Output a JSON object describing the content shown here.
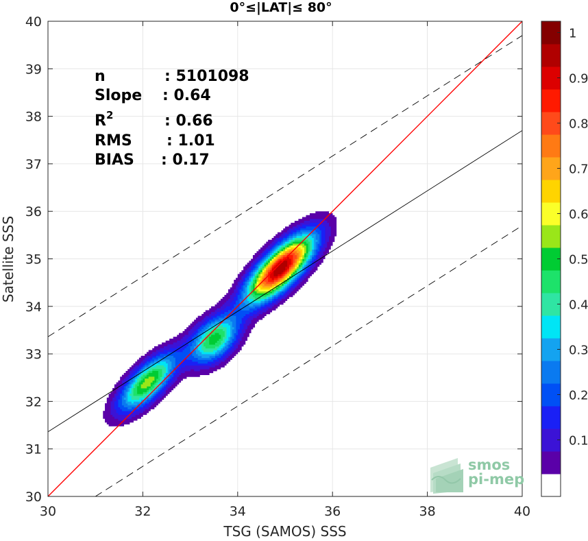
{
  "chart_data": {
    "type": "heatmap",
    "title": "0°≤|LAT|≤ 80°",
    "xlabel": "TSG (SAMOS) SSS",
    "ylabel": "Satellite SSS",
    "xlim": [
      30,
      40
    ],
    "ylim": [
      30,
      40
    ],
    "x_ticks": [
      "30",
      "32",
      "34",
      "36",
      "38",
      "40"
    ],
    "y_ticks": [
      "30",
      "31",
      "32",
      "33",
      "34",
      "35",
      "36",
      "37",
      "38",
      "39",
      "40"
    ],
    "grid": true,
    "stats": [
      {
        "label": "n",
        "value": ": 5101098"
      },
      {
        "label": "Slope",
        "value": ": 0.64"
      },
      {
        "label": "R",
        "sup": "2",
        "value": ": 0.66"
      },
      {
        "label": "RMS",
        "value": ": 1.01"
      },
      {
        "label": "BIAS",
        "value": ": 0.17"
      }
    ],
    "reference_lines": [
      {
        "kind": "identity",
        "color": "#ff0000",
        "style": "solid",
        "x": [
          30,
          40
        ],
        "y": [
          30,
          40
        ]
      },
      {
        "kind": "regression",
        "color": "#000000",
        "style": "solid",
        "x": [
          30,
          40
        ],
        "y": [
          31.36,
          37.7
        ]
      },
      {
        "kind": "upper-bound",
        "color": "#000000",
        "style": "dashed",
        "x": [
          30,
          40
        ],
        "y": [
          33.36,
          39.7
        ]
      },
      {
        "kind": "lower-bound",
        "color": "#000000",
        "style": "dashed",
        "x": [
          31.0,
          40
        ],
        "y": [
          30.0,
          35.7
        ]
      }
    ],
    "density_clusters": [
      {
        "x": 32.1,
        "y": 32.4,
        "peak": 0.58
      },
      {
        "x": 33.5,
        "y": 33.3,
        "peak": 0.52
      },
      {
        "x": 34.9,
        "y": 34.8,
        "peak": 1.0
      }
    ],
    "colorbar": {
      "ticks": [
        "0.1",
        "0.2",
        "0.3",
        "0.4",
        "0.5",
        "0.6",
        "0.7",
        "0.8",
        "0.9",
        "1"
      ],
      "levels": [
        0.05,
        0.1,
        0.15,
        0.2,
        0.25,
        0.3,
        0.35,
        0.4,
        0.45,
        0.5,
        0.55,
        0.6,
        0.65,
        0.7,
        0.75,
        0.8,
        0.85,
        0.9,
        0.95,
        1.0
      ],
      "colors": [
        "#ffffff",
        "#5a00a8",
        "#3b13d6",
        "#1a20f5",
        "#0050f5",
        "#0a7af0",
        "#14a3f0",
        "#00e5f5",
        "#2fe5a3",
        "#1de26a",
        "#00cc33",
        "#9ae619",
        "#fbff29",
        "#ffd400",
        "#ffa51a",
        "#ff7a14",
        "#ff4a1a",
        "#ff1a00",
        "#dc0000",
        "#b00000",
        "#840000"
      ]
    }
  },
  "logo": {
    "line1": "smos",
    "line2": "pi-mep"
  }
}
